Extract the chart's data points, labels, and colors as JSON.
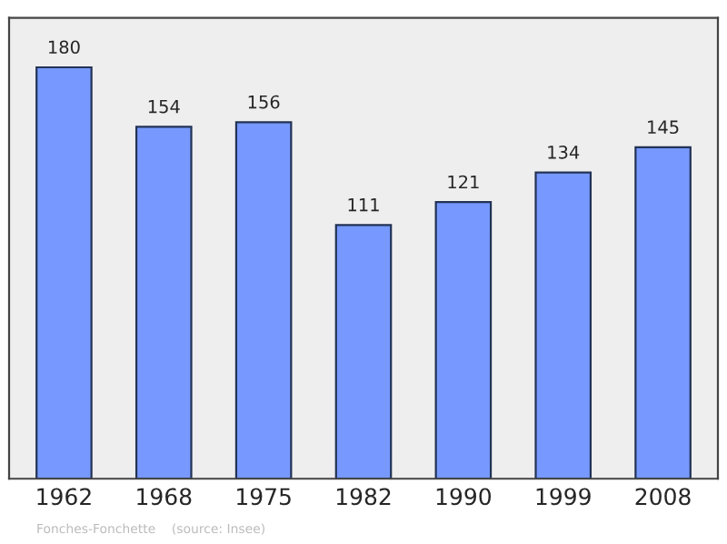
{
  "chart_data": {
    "type": "bar",
    "categories": [
      "1962",
      "1968",
      "1975",
      "1982",
      "1990",
      "1999",
      "2008"
    ],
    "values": [
      180,
      154,
      156,
      111,
      121,
      134,
      145
    ],
    "color": "#7799ff",
    "data_labels": true,
    "tick_labels": "x",
    "grid": false,
    "annotations": [
      "Fonches-Fonchette    (source: Insee)"
    ]
  }
}
